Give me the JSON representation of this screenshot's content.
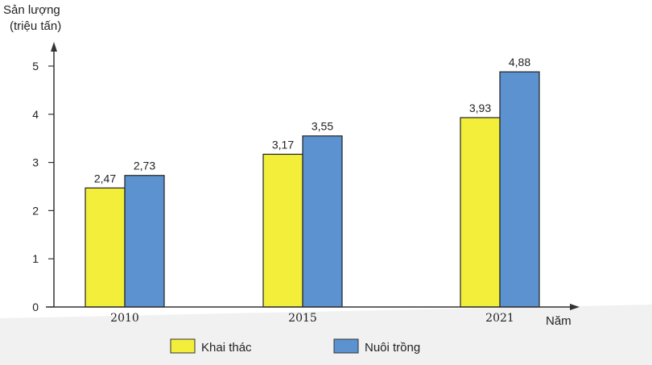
{
  "chart_data": {
    "type": "bar",
    "ylabel": "Sản lượng",
    "yunit": "(triệu tấn)",
    "xlabel": "Năm",
    "categories": [
      "2010",
      "2015",
      "2021"
    ],
    "ylim": [
      0,
      5
    ],
    "yticks": [
      "0",
      "1",
      "2",
      "3",
      "4",
      "5"
    ],
    "series": [
      {
        "name": "Khai thác",
        "values": [
          2.47,
          3.17,
          3.93
        ],
        "labels": [
          "2,47",
          "3,17",
          "3,93"
        ],
        "color": "#f2ee3a"
      },
      {
        "name": "Nuôi trồng",
        "values": [
          2.73,
          3.55,
          4.88
        ],
        "labels": [
          "2,73",
          "3,55",
          "4,88"
        ],
        "color": "#5b92cf"
      }
    ],
    "legend_position": "bottom",
    "grid": false
  }
}
